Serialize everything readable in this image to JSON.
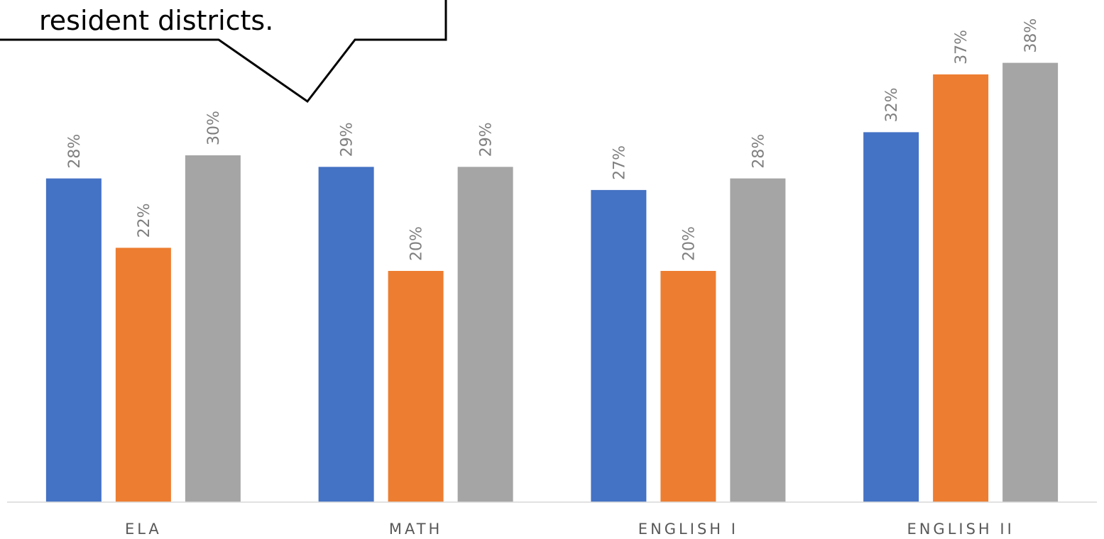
{
  "callout": {
    "text": "resident districts."
  },
  "chart_data": {
    "type": "bar",
    "categories": [
      "ELA",
      "MATH",
      "ENGLISH I",
      "ENGLISH II"
    ],
    "series": [
      {
        "color": "#4472c4",
        "values": [
          28,
          29,
          27,
          32
        ],
        "labels": [
          "28%",
          "29%",
          "27%",
          "32%"
        ]
      },
      {
        "color": "#ed7d31",
        "values": [
          22,
          20,
          20,
          37
        ],
        "labels": [
          "22%",
          "20%",
          "20%",
          "37%"
        ]
      },
      {
        "color": "#a5a5a5",
        "values": [
          30,
          29,
          28,
          38
        ],
        "labels": [
          "30%",
          "29%",
          "28%",
          "38%"
        ]
      }
    ],
    "ylim": [
      0,
      40
    ],
    "grid": false,
    "legend": "none"
  }
}
